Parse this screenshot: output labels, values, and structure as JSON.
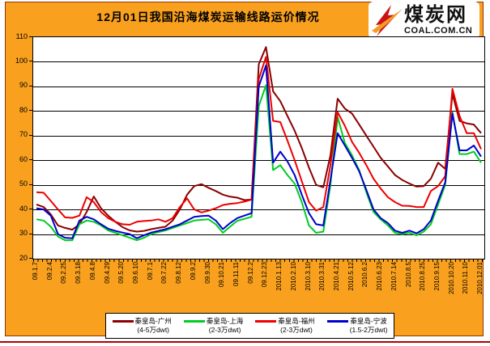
{
  "page": {
    "panel_color": "#F9A11E",
    "panel_border_color": "#993300",
    "bottom_rule_color": "#B00000"
  },
  "header": {
    "title": "12月01日我国沿海煤炭运输线路运价情况"
  },
  "logo": {
    "name": "煤炭网",
    "url_text": "COAL.COM.CN",
    "mark_red": "#CC1212",
    "mark_orange": "#F59A23"
  },
  "chart_data": {
    "type": "line",
    "title": "12月01日我国沿海煤炭运输线路运价情况",
    "xlabel": "",
    "ylabel": "",
    "ylim": [
      20,
      110
    ],
    "yticks": [
      110,
      100,
      90,
      80,
      70,
      60,
      50,
      40,
      30,
      20
    ],
    "grid": "horizontal",
    "legend_position": "bottom",
    "points_per_label_interval": 2,
    "x_labels": [
      "09.1.7",
      "09.2.4",
      "09.2.25",
      "09.3.18",
      "09.4.8",
      "09.4.29",
      "09.5.20",
      "09.6.10",
      "09.7.1",
      "09.7.22",
      "09.8.12",
      "09.9.2",
      "09.9.30",
      "09.10.21",
      "09.11.11",
      "09.12.2",
      "09.12.23",
      "2010.1.13",
      "2010.2.10",
      "2010.3.10",
      "2010.3.31",
      "2010.4.21",
      "2010.5.12",
      "2010.6.2",
      "2010.6.23",
      "2010.7.14",
      "2010.8.5",
      "2010.8.25",
      "2010.9.15",
      "2010.10.20",
      "2010.11.10",
      "2010.12.01"
    ],
    "series": [
      {
        "name": "秦皇岛-广州",
        "size": "(4-5万dwt)",
        "color": "#8B0000",
        "values": [
          42,
          41,
          38,
          33.5,
          32.5,
          31.8,
          34,
          39,
          45.3,
          40.5,
          37.5,
          35,
          32.8,
          31.5,
          31,
          31.3,
          32,
          32.5,
          33,
          35.5,
          40,
          46,
          49.5,
          50.3,
          48.8,
          47.5,
          46,
          45.2,
          44.8,
          43.8,
          44,
          99,
          106,
          88,
          84,
          78,
          72,
          65,
          57,
          50,
          49,
          62,
          85,
          81,
          79,
          74.5,
          70,
          65.5,
          61,
          57.5,
          54,
          52,
          50.5,
          49.3,
          49.5,
          52.5,
          59,
          56.5,
          87,
          76,
          75,
          74.5,
          71
        ]
      },
      {
        "name": "秦皇岛-上海",
        "size": "(2-3万dwt)",
        "color": "#00CC22",
        "values": [
          36,
          35.5,
          33,
          29,
          27.5,
          27.5,
          34,
          35.5,
          35,
          33.5,
          31.5,
          30.5,
          29.5,
          28.5,
          27.5,
          28.5,
          30,
          30.8,
          31.5,
          32.5,
          33.5,
          34.5,
          35.5,
          35.8,
          36,
          34,
          30.5,
          33,
          35.4,
          36.2,
          37,
          82,
          90.5,
          56,
          58,
          54,
          50.5,
          43,
          33.5,
          30.5,
          31,
          50,
          77.5,
          67,
          62,
          56,
          47,
          39,
          36,
          33.5,
          30.5,
          30,
          30.5,
          29.5,
          31,
          34,
          42,
          50,
          79.5,
          62.5,
          62.5,
          63.5,
          59
        ]
      },
      {
        "name": "秦皇岛-福州",
        "size": "(2-3万dwt)",
        "color": "#EE0000",
        "values": [
          47,
          46.8,
          43.5,
          40,
          36.8,
          36.6,
          37.5,
          45,
          43,
          39,
          36.5,
          35,
          34,
          33.8,
          35,
          35.3,
          35.5,
          36,
          35,
          36.5,
          41,
          44.5,
          40,
          38.8,
          39.5,
          40.5,
          41.8,
          42.3,
          42.6,
          43.2,
          44,
          93,
          102,
          76,
          75.5,
          68,
          60,
          51.5,
          43,
          39.5,
          41,
          58,
          79.5,
          74,
          67.5,
          63,
          58,
          52.5,
          48.5,
          45,
          43,
          41.5,
          41.4,
          41,
          41,
          47.5,
          49.5,
          53.5,
          89,
          78,
          71,
          71,
          64.5
        ]
      },
      {
        "name": "秦皇岛-宁波",
        "size": "(1.5-2万dwt)",
        "color": "#0000CC",
        "values": [
          40.5,
          40,
          37.5,
          30,
          28.5,
          28.3,
          35.5,
          37,
          36,
          34,
          32.2,
          31.3,
          30.6,
          30,
          28.3,
          29.5,
          30.6,
          31.3,
          32,
          33,
          34,
          35.5,
          37,
          37.3,
          37.5,
          35.5,
          32,
          34.5,
          36.5,
          37.5,
          38.5,
          90,
          98.5,
          59,
          63.5,
          59.5,
          54,
          46,
          38.5,
          34,
          33.5,
          52,
          71,
          66,
          61,
          55.5,
          48,
          40,
          36.5,
          34.5,
          31.4,
          30.5,
          31.4,
          30.3,
          32,
          35.5,
          43.5,
          51,
          79,
          64,
          64,
          66,
          61.5
        ]
      }
    ]
  }
}
